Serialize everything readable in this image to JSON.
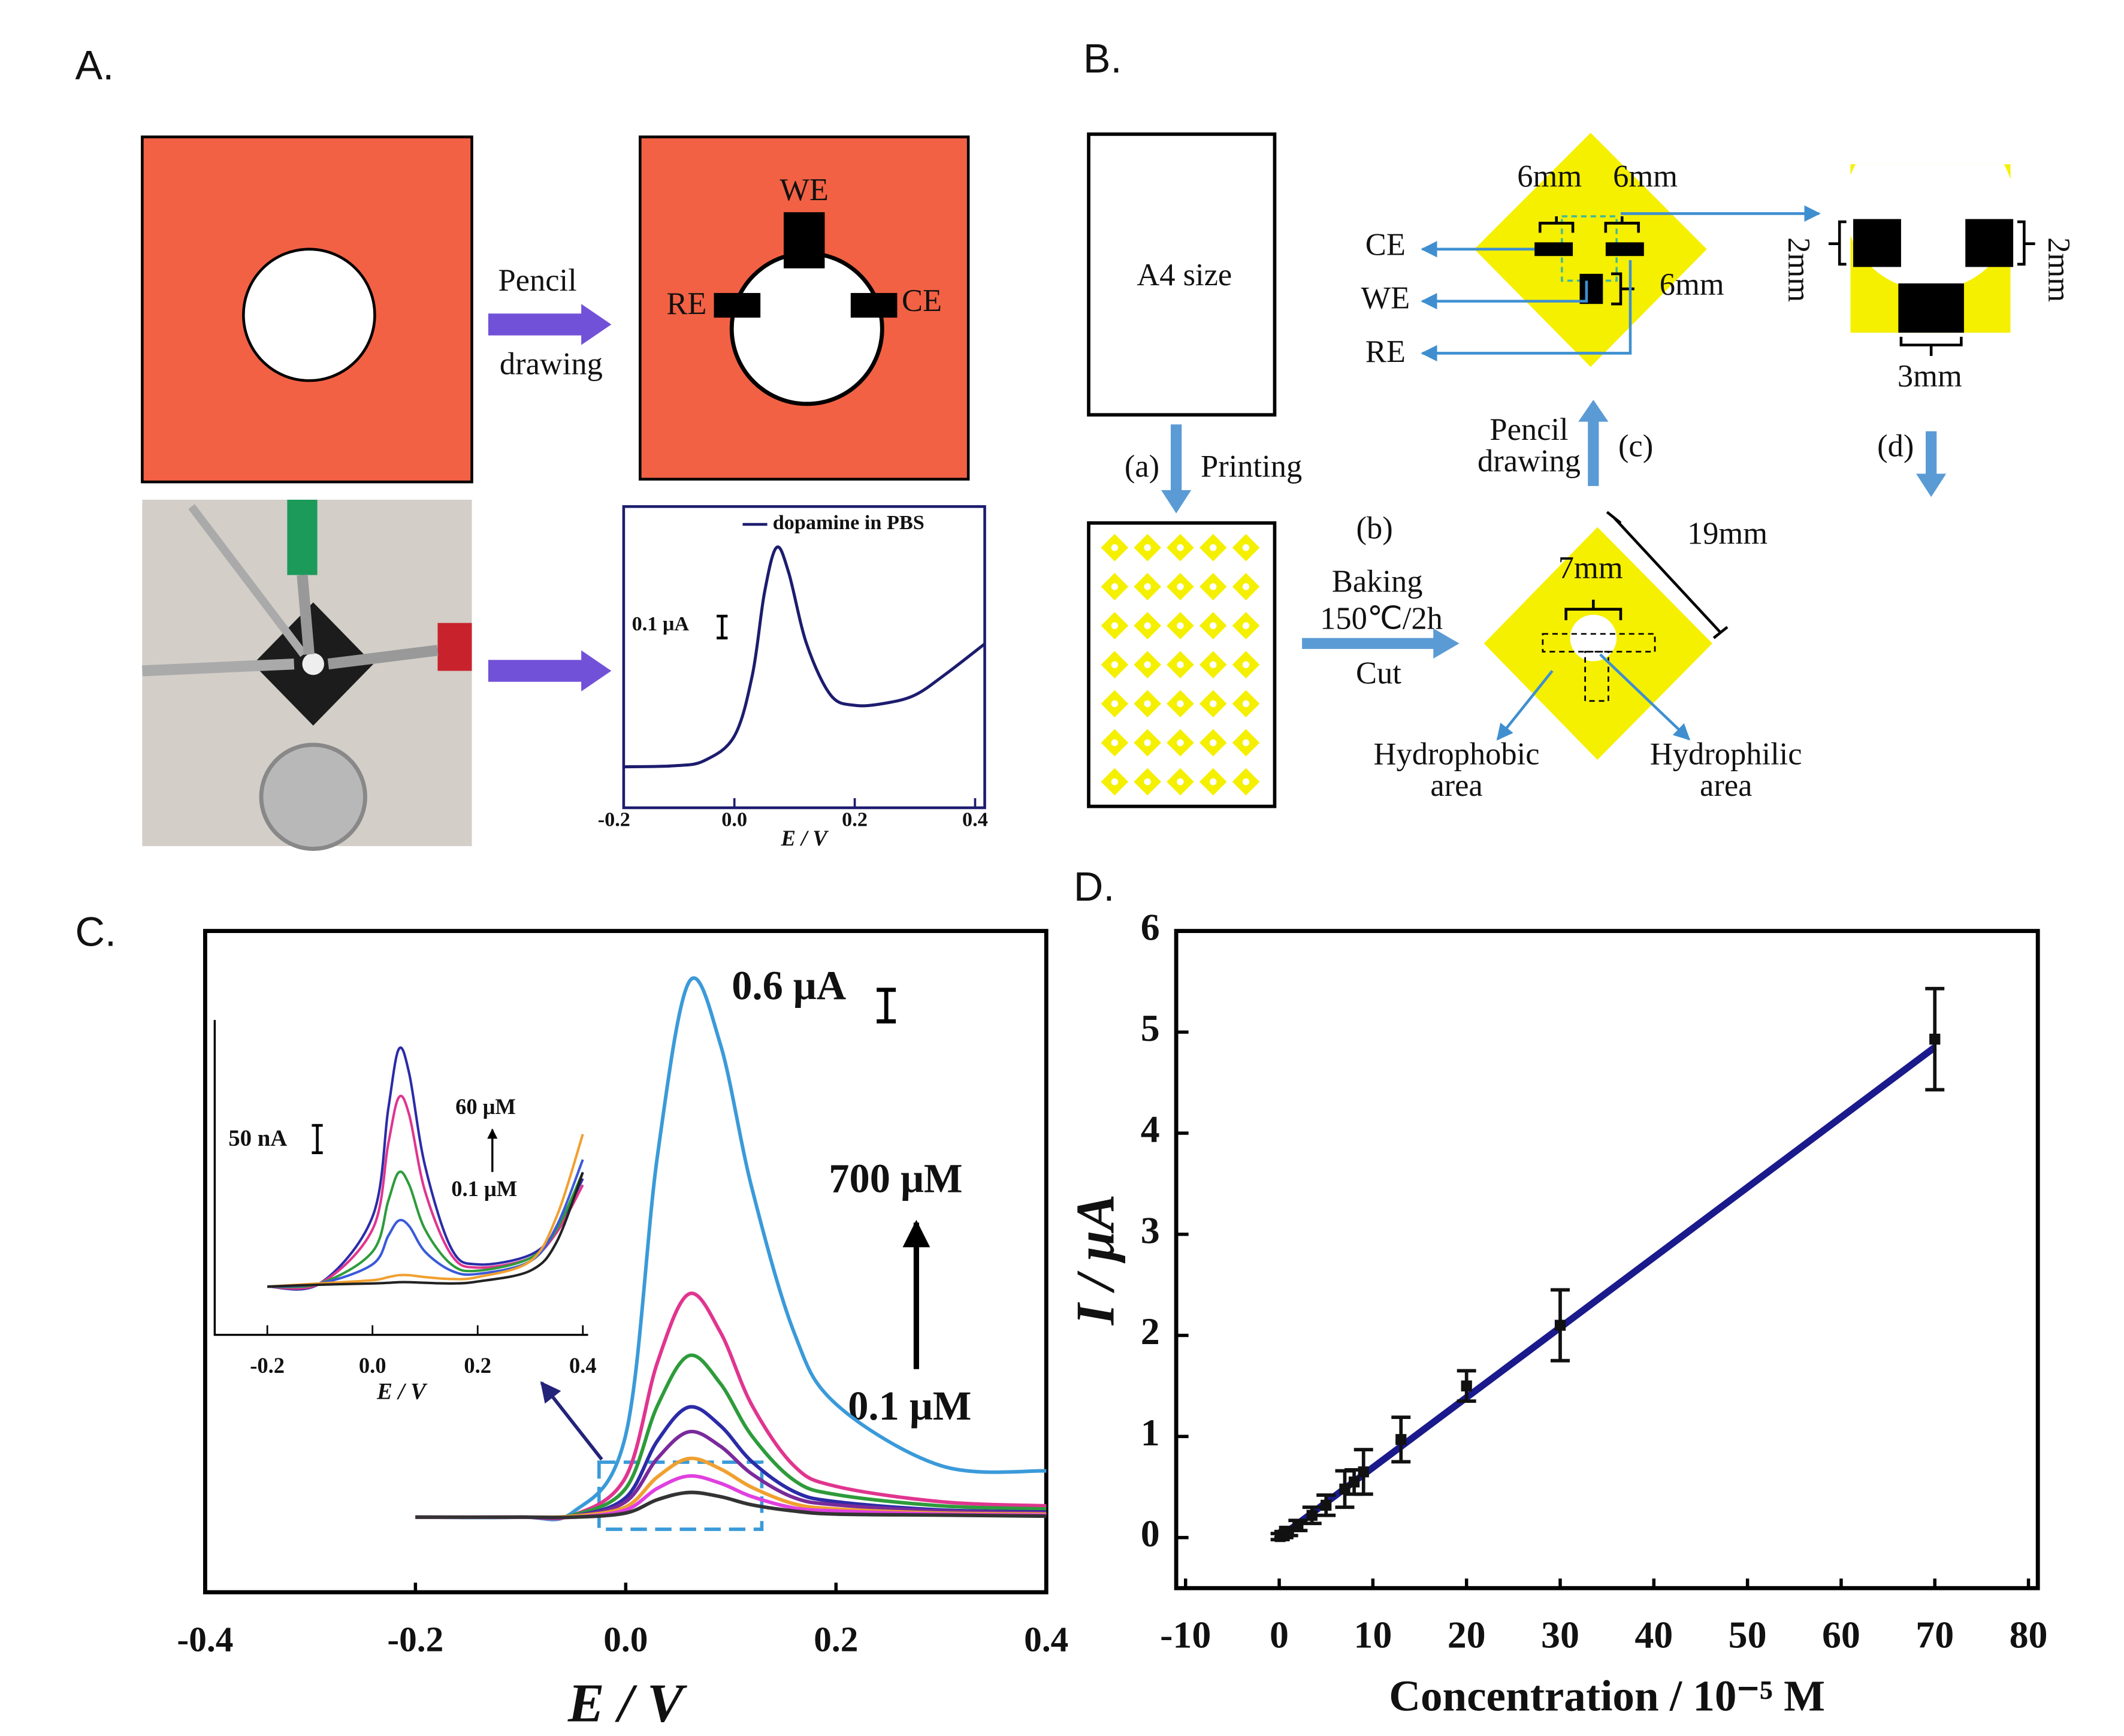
{
  "panels": {
    "A": {
      "label": "A.",
      "pencil": "Pencil",
      "drawing": "drawing",
      "we": "WE",
      "re": "RE",
      "ce": "CE"
    },
    "B": {
      "label": "B.",
      "a4": "A4 size",
      "a": "(a)",
      "printing": "Printing",
      "b": "(b)",
      "baking": "Baking",
      "temp": "150℃/2h",
      "cut": "Cut",
      "c": "(c)",
      "pencil": "Pencil",
      "drawing": "drawing",
      "d": "(d)",
      "ce": "CE",
      "we": "WE",
      "re": "RE",
      "mm6a": "6mm",
      "mm6b": "6mm",
      "mm6c": "6mm",
      "mm2a": "2mm",
      "mm2b": "2mm",
      "mm3": "3mm",
      "mm19": "19mm",
      "mm7": "7mm",
      "hydrophobic": [
        "Hydrophobic",
        "area"
      ],
      "hydrophilic": [
        "Hydrophilic",
        "area"
      ]
    }
  },
  "chart_data": [
    {
      "type": "line",
      "xlabel": "E / V",
      "x": [
        -0.184,
        -0.1,
        -0.05,
        0,
        0.03,
        0.05,
        0.07,
        0.09,
        0.12,
        0.16,
        0.2,
        0.25,
        0.3,
        0.35,
        0.416
      ],
      "series": [
        {
          "name": "dopamine in PBS",
          "color": "#1c1c6e",
          "values": [
            0,
            0.005,
            0.03,
            0.15,
            0.45,
            0.85,
            1.07,
            0.95,
            0.6,
            0.35,
            0.3,
            0.31,
            0.35,
            0.45,
            0.6
          ]
        }
      ],
      "xlim": [
        -0.184,
        0.416
      ],
      "ylim": [
        -0.2,
        1.27
      ],
      "xticks": [
        -0.2,
        {
          "value": 0,
          "label": "0.0"
        },
        0.2,
        0.4
      ],
      "annotations": [
        "0.1 μA"
      ]
    },
    {
      "type": "line",
      "panel_label": "C.",
      "xlabel": "E / V",
      "x": [
        -0.2,
        -0.1,
        -0.05,
        0,
        0.03,
        0.06,
        0.09,
        0.12,
        0.16,
        0.2,
        0.3,
        0.4
      ],
      "series": [
        {
          "color": "#3a9ad9",
          "values": [
            0,
            0,
            0.05,
            0.8,
            3.5,
            5.2,
            4.6,
            3.2,
            1.8,
            1.1,
            0.5,
            0.45
          ]
        },
        {
          "color": "#e0358f",
          "values": [
            0,
            0,
            0.02,
            0.39,
            1.5,
            2.17,
            1.8,
            1.09,
            0.5,
            0.3,
            0.15,
            0.11
          ]
        },
        {
          "color": "#2e9b3b",
          "values": [
            0,
            0,
            0.02,
            0.28,
            1.08,
            1.57,
            1.3,
            0.79,
            0.36,
            0.22,
            0.11,
            0.08
          ]
        },
        {
          "color": "#2b2ba8",
          "values": [
            0,
            0,
            0.01,
            0.19,
            0.74,
            1.07,
            0.89,
            0.54,
            0.25,
            0.15,
            0.07,
            0.05
          ]
        },
        {
          "color": "#7a2a9a",
          "values": [
            0,
            0,
            0.01,
            0.15,
            0.57,
            0.83,
            0.69,
            0.42,
            0.19,
            0.12,
            0.06,
            0.04
          ]
        },
        {
          "color": "#f0a030",
          "values": [
            0,
            0,
            0.01,
            0.1,
            0.39,
            0.57,
            0.47,
            0.29,
            0.13,
            0.08,
            0.04,
            0.03
          ]
        },
        {
          "color": "#e040e0",
          "values": [
            0,
            0,
            0,
            0.07,
            0.28,
            0.4,
            0.33,
            0.2,
            0.09,
            0.06,
            0.03,
            0.02
          ]
        },
        {
          "color": "#333333",
          "values": [
            0,
            0,
            0,
            0.04,
            0.17,
            0.24,
            0.2,
            0.12,
            0.06,
            0.03,
            0.02,
            0.01
          ]
        }
      ],
      "xlim": [
        -0.4,
        0.4
      ],
      "ylim": [
        -0.73,
        5.7
      ],
      "xticks": [
        -0.4,
        -0.2,
        {
          "value": 0,
          "label": "0.0"
        },
        0.2,
        0.4
      ],
      "annotations": [
        "0.6 μA",
        "700 μM",
        "0.1 μM"
      ]
    },
    {
      "type": "line",
      "xlabel": "E / V",
      "x": [
        -0.2,
        -0.1,
        0,
        0.03,
        0.05,
        0.07,
        0.1,
        0.15,
        0.2,
        0.3,
        0.35,
        0.4
      ],
      "series": [
        {
          "color": "#2b2ba8",
          "values": [
            0,
            5,
            110,
            280,
            374,
            335,
            190,
            60,
            35,
            50,
            90,
            170
          ]
        },
        {
          "color": "#e0358f",
          "values": [
            0,
            5,
            90,
            225,
            298,
            270,
            150,
            50,
            30,
            45,
            85,
            160
          ]
        },
        {
          "color": "#2e9b3b",
          "values": [
            0,
            5,
            55,
            135,
            180,
            160,
            90,
            35,
            25,
            45,
            90,
            180
          ]
        },
        {
          "color": "#3a5ad9",
          "values": [
            0,
            5,
            35,
            80,
            104,
            95,
            55,
            25,
            20,
            40,
            95,
            200
          ]
        },
        {
          "color": "#f0a030",
          "values": [
            0,
            5,
            10,
            15,
            18,
            18,
            15,
            12,
            15,
            40,
            110,
            240
          ]
        },
        {
          "color": "#222222",
          "values": [
            0,
            3,
            5,
            6,
            7,
            7,
            6,
            5,
            8,
            25,
            70,
            180
          ]
        }
      ],
      "xlim": [
        -0.3,
        0.41
      ],
      "ylim": [
        -76,
        420
      ],
      "xticks": [
        -0.2,
        {
          "value": 0,
          "label": "0.0"
        },
        0.2,
        0.4
      ],
      "annotations": [
        "50 nA",
        "60 μM",
        "0.1 μM"
      ]
    },
    {
      "type": "scatter",
      "panel_label": "D.",
      "xlabel": "Concentration / 10⁻⁵ M",
      "ylabel": "I / μA",
      "color": "#111111",
      "x": [
        0.1,
        0.5,
        1,
        2,
        3.5,
        5,
        7,
        8,
        9,
        13,
        20,
        30,
        70
      ],
      "values": [
        0.01,
        0.03,
        0.06,
        0.12,
        0.22,
        0.32,
        0.48,
        0.55,
        0.65,
        0.97,
        1.5,
        2.1,
        4.93
      ],
      "errors": [
        0.03,
        0.03,
        0.04,
        0.05,
        0.08,
        0.1,
        0.18,
        0.12,
        0.22,
        0.22,
        0.15,
        0.35,
        0.5
      ],
      "fit": {
        "x": [
          0,
          70
        ],
        "values": [
          0,
          4.85
        ],
        "color": "#1a1a8c"
      },
      "xlim": [
        -11,
        81
      ],
      "ylim": [
        -0.5,
        6
      ],
      "xticks": [
        -10,
        0,
        10,
        20,
        30,
        40,
        50,
        60,
        70,
        80
      ],
      "yticks": [
        0,
        1,
        2,
        3,
        4,
        5,
        6
      ]
    }
  ]
}
